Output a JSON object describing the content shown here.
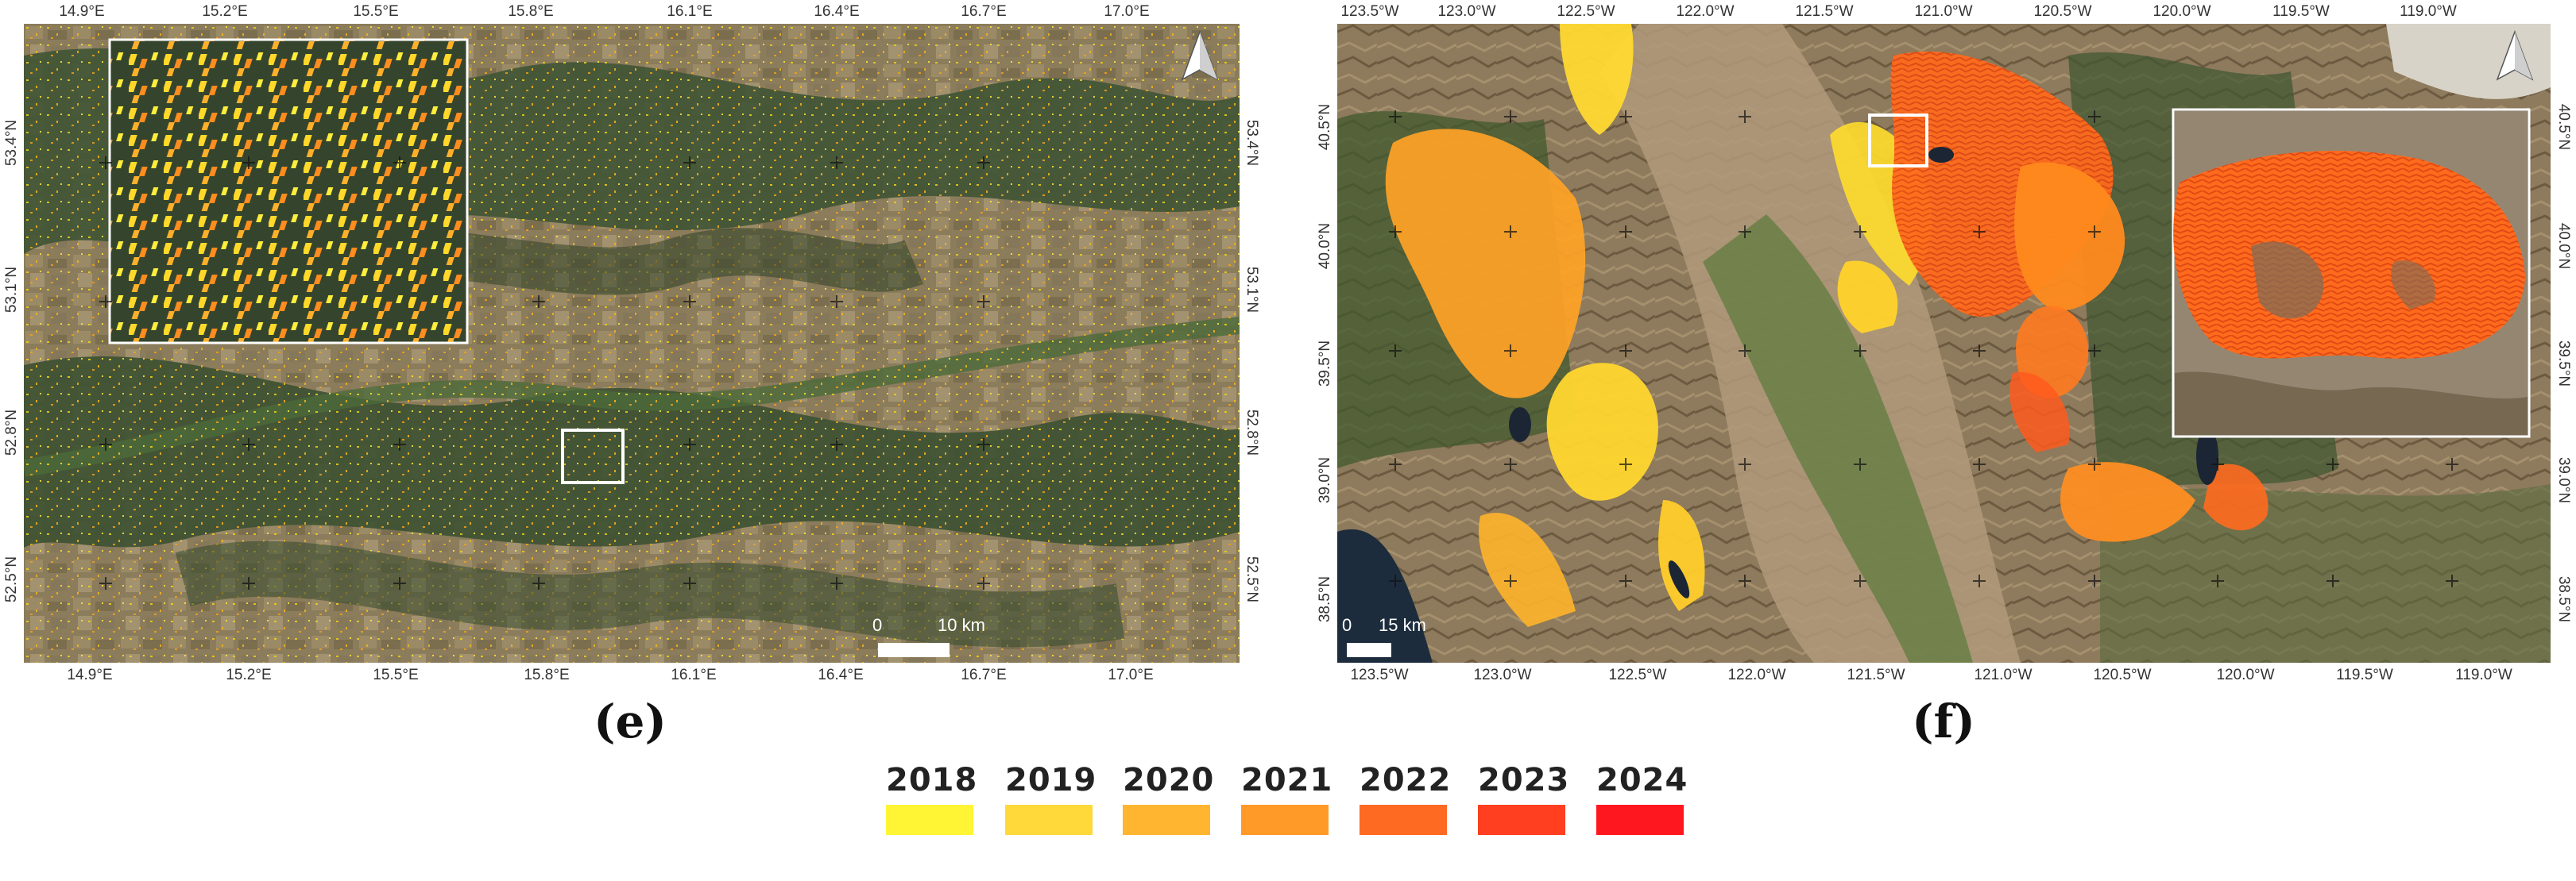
{
  "panels": [
    {
      "caption": "(e)",
      "top_ticks": [
        "14.9°E",
        "15.2°E",
        "15.5°E",
        "15.8°E",
        "16.1°E",
        "16.4°E",
        "16.7°E",
        "17.0°E"
      ],
      "bottom_ticks": [
        "14.9°E",
        "15.2°E",
        "15.5°E",
        "15.8°E",
        "16.1°E",
        "16.4°E",
        "16.7°E",
        "17.0°E"
      ],
      "left_ticks": [
        "53.4°N",
        "53.1°N",
        "52.8°N",
        "52.5°N"
      ],
      "right_ticks": [
        "53.4°N",
        "53.1°N",
        "52.8°N",
        "52.5°N"
      ],
      "scale_zero": "0",
      "scale_label": "10 km",
      "north_arrow": "north-arrow-icon"
    },
    {
      "caption": "(f)",
      "top_ticks": [
        "123.5°W",
        "123.0°W",
        "122.5°W",
        "122.0°W",
        "121.5°W",
        "121.0°W",
        "120.5°W",
        "120.0°W",
        "119.5°W",
        "119.0°W"
      ],
      "bottom_ticks": [
        "123.5°W",
        "123.0°W",
        "122.5°W",
        "122.0°W",
        "121.5°W",
        "121.0°W",
        "120.5°W",
        "120.0°W",
        "119.5°W",
        "119.0°W"
      ],
      "left_ticks": [
        "40.5°N",
        "40.0°N",
        "39.5°N",
        "39.0°N",
        "38.5°N"
      ],
      "right_ticks": [
        "40.5°N",
        "40.0°N",
        "39.5°N",
        "39.0°N",
        "38.5°N"
      ],
      "scale_zero": "0",
      "scale_label": "15 km",
      "north_arrow": "north-arrow-icon"
    }
  ],
  "legend": {
    "items": [
      {
        "label": "2018",
        "color": "#fff534"
      },
      {
        "label": "2019",
        "color": "#ffd83a"
      },
      {
        "label": "2020",
        "color": "#ffb530"
      },
      {
        "label": "2021",
        "color": "#ff9a28"
      },
      {
        "label": "2022",
        "color": "#ff6a22"
      },
      {
        "label": "2023",
        "color": "#ff3f1f"
      },
      {
        "label": "2024",
        "color": "#ff1720"
      }
    ]
  }
}
